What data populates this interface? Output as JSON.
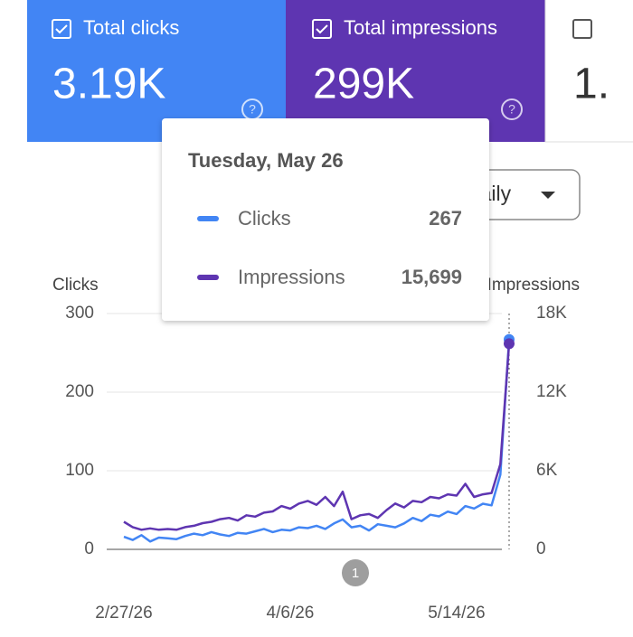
{
  "cards": [
    {
      "label": "Total clicks",
      "value": "3.19K"
    },
    {
      "label": "Total impressions",
      "value": "299K"
    },
    {
      "value": "1."
    }
  ],
  "dropdown": "Daily",
  "tooltip": {
    "title": "Tuesday, May 26",
    "rows": [
      {
        "label": "Clicks",
        "value": "267"
      },
      {
        "label": "Impressions",
        "value": "15,699"
      }
    ]
  },
  "annotations": [
    "1"
  ],
  "chart_data": {
    "type": "line",
    "ylabel": "Clicks",
    "y2label": "Impressions",
    "categories": [
      "2/27/26",
      null,
      null,
      null,
      null,
      null,
      null,
      null,
      null,
      null,
      null,
      null,
      null,
      null,
      null,
      null,
      null,
      null,
      null,
      "4/6/26",
      null,
      null,
      null,
      null,
      null,
      null,
      null,
      null,
      null,
      null,
      null,
      null,
      null,
      null,
      null,
      null,
      null,
      null,
      "5/14/26",
      null,
      null,
      null,
      null,
      null,
      null
    ],
    "series": [
      {
        "name": "Clicks",
        "color": "#4285f4",
        "values": [
          16,
          12,
          18,
          10,
          15,
          14,
          13,
          17,
          20,
          18,
          22,
          19,
          17,
          21,
          20,
          23,
          26,
          22,
          25,
          24,
          28,
          27,
          30,
          26,
          33,
          38,
          28,
          30,
          24,
          32,
          30,
          28,
          33,
          40,
          36,
          44,
          42,
          48,
          45,
          55,
          52,
          58,
          56,
          95,
          267
        ]
      },
      {
        "name": "Impressions",
        "color": "#5e35b1",
        "axis": "y2",
        "values": [
          2100,
          1700,
          1500,
          1600,
          1500,
          1550,
          1500,
          1700,
          1800,
          2000,
          2100,
          2300,
          2400,
          2200,
          2600,
          2500,
          2800,
          2900,
          3300,
          3100,
          3500,
          3700,
          3400,
          4000,
          3300,
          4400,
          2300,
          2600,
          2700,
          2400,
          3000,
          3500,
          3200,
          3700,
          3600,
          4000,
          3900,
          4200,
          4100,
          5000,
          4000,
          4200,
          4300,
          6500,
          15699
        ]
      }
    ],
    "ylim": [
      0,
      300
    ],
    "yticks": [
      0,
      100,
      200,
      300
    ],
    "y2lim": [
      0,
      18000
    ],
    "y2ticks": [
      0,
      {
        "value": 6000,
        "label": "6K"
      },
      {
        "value": 12000,
        "label": "12K"
      },
      {
        "value": 18000,
        "label": "18K"
      }
    ],
    "grid": true
  }
}
